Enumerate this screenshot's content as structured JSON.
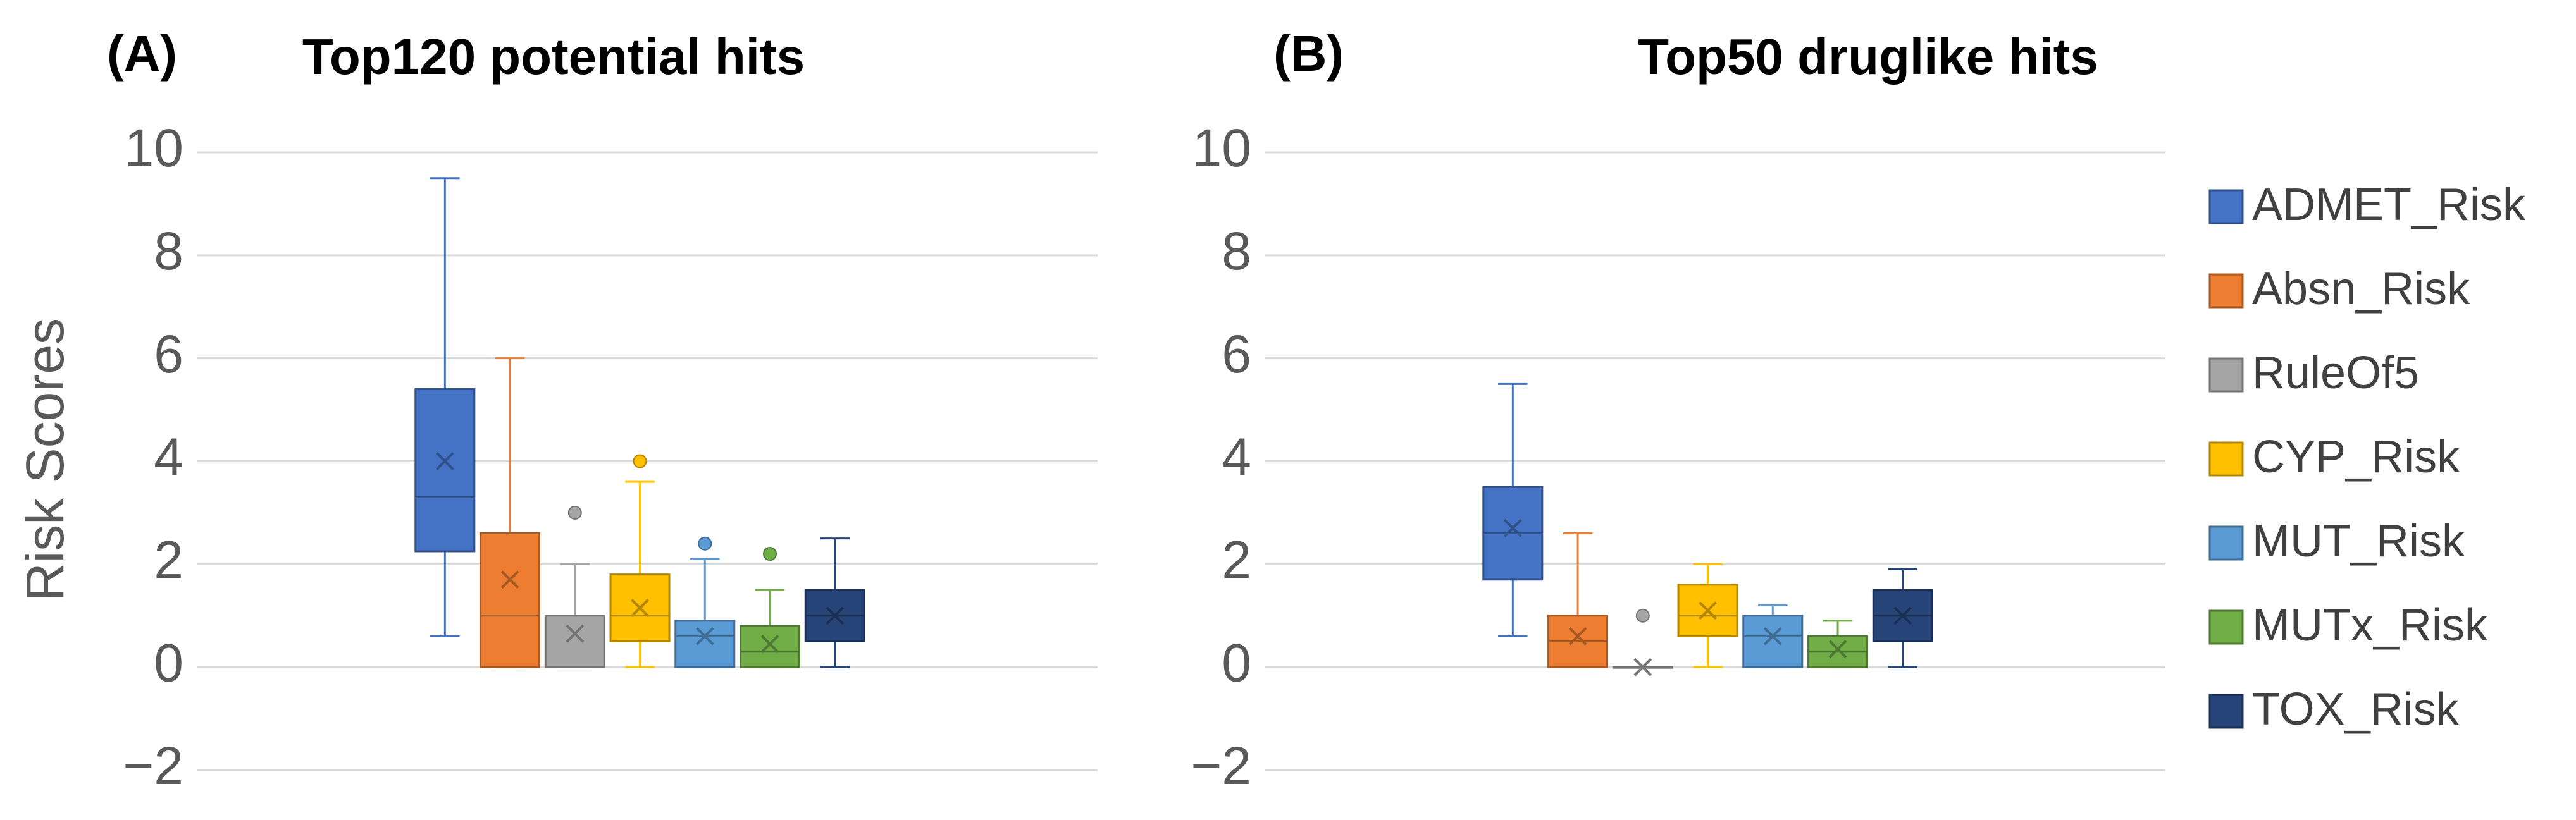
{
  "chart_data": [
    {
      "type": "box",
      "label": "(A)",
      "title": "Top120 potential hits",
      "ylabel": "Risk Scores",
      "ylim": [
        -2,
        10
      ],
      "yticks": [
        {
          "value": -2,
          "label": "−2"
        },
        0,
        2,
        4,
        6,
        8,
        10
      ],
      "grid": true,
      "series": [
        {
          "whisker_low": 0.6,
          "q1": 2.25,
          "median": 3.3,
          "q3": 5.4,
          "whisker_high": 9.5,
          "mean": 4
        },
        {
          "whisker_low": 0,
          "q1": 0,
          "median": 1,
          "q3": 2.6,
          "whisker_high": 6,
          "mean": 1.7
        },
        {
          "whisker_low": 0,
          "q1": 0,
          "median": 0,
          "q3": 1,
          "whisker_high": 2,
          "mean": 0.65,
          "outliers": [
            3
          ]
        },
        {
          "whisker_low": 0,
          "q1": 0.5,
          "median": 1,
          "q3": 1.8,
          "whisker_high": 3.6,
          "mean": 1.15,
          "outliers": [
            4
          ]
        },
        {
          "whisker_low": 0,
          "q1": 0,
          "median": 0.6,
          "q3": 0.9,
          "whisker_high": 2.1,
          "mean": 0.6,
          "outliers": [
            2.4
          ]
        },
        {
          "whisker_low": 0,
          "q1": 0,
          "median": 0.3,
          "q3": 0.8,
          "whisker_high": 1.5,
          "mean": 0.45,
          "outliers": [
            2.2
          ]
        },
        {
          "whisker_low": 0,
          "q1": 0.5,
          "median": 1,
          "q3": 1.5,
          "whisker_high": 2.5,
          "mean": 1
        }
      ]
    },
    {
      "type": "box",
      "label": "(B)",
      "title": "Top50 druglike hits",
      "ylim": [
        -2,
        10
      ],
      "yticks": [
        {
          "value": -2,
          "label": "−2"
        },
        0,
        2,
        4,
        6,
        8,
        10
      ],
      "grid": true,
      "series": [
        {
          "whisker_low": 0.6,
          "q1": 1.7,
          "median": 2.6,
          "q3": 3.5,
          "whisker_high": 5.5,
          "mean": 2.7
        },
        {
          "whisker_low": 0,
          "q1": 0,
          "median": 0.5,
          "q3": 1,
          "whisker_high": 2.6,
          "mean": 0.6
        },
        {
          "whisker_low": 0,
          "q1": 0,
          "median": 0,
          "q3": 0,
          "whisker_high": 0,
          "mean": 0,
          "outliers": [
            1
          ]
        },
        {
          "whisker_low": 0,
          "q1": 0.6,
          "median": 1,
          "q3": 1.6,
          "whisker_high": 2,
          "mean": 1.1
        },
        {
          "whisker_low": 0,
          "q1": 0,
          "median": 0.6,
          "q3": 1,
          "whisker_high": 1.2,
          "mean": 0.6
        },
        {
          "whisker_low": 0,
          "q1": 0,
          "median": 0.3,
          "q3": 0.6,
          "whisker_high": 0.9,
          "mean": 0.35
        },
        {
          "whisker_low": 0,
          "q1": 0.5,
          "median": 1,
          "q3": 1.5,
          "whisker_high": 1.9,
          "mean": 1
        }
      ]
    }
  ],
  "legend": {
    "position": "right",
    "items": [
      {
        "name": "ADMET_Risk",
        "color": "#4472c4"
      },
      {
        "name": "Absn_Risk",
        "color": "#ed7d31"
      },
      {
        "name": "RuleOf5",
        "color": "#a5a5a5"
      },
      {
        "name": "CYP_Risk",
        "color": "#ffc000"
      },
      {
        "name": "MUT_Risk",
        "color": "#5b9bd5"
      },
      {
        "name": "MUTx_Risk",
        "color": "#70ad47"
      },
      {
        "name": "TOX_Risk",
        "color": "#264478"
      }
    ]
  }
}
